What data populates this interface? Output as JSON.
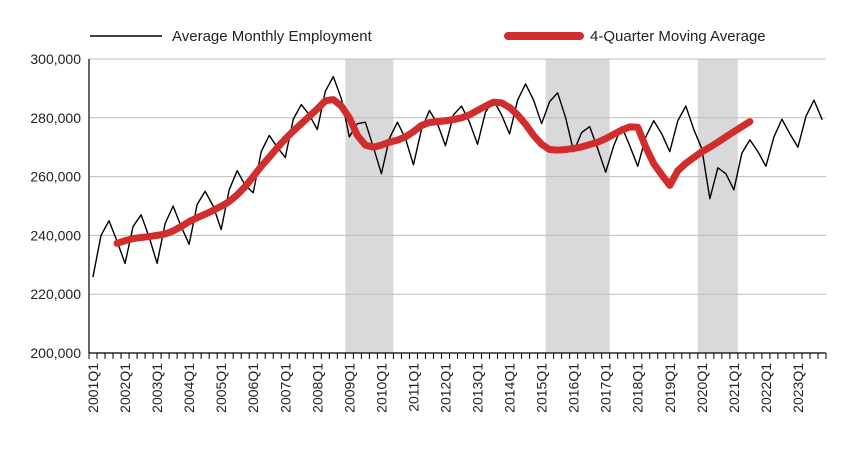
{
  "chart_data": {
    "type": "line",
    "title": "",
    "xlabel": "",
    "ylabel": "",
    "ylim": [
      200000,
      300000
    ],
    "yticks": [
      200000,
      220000,
      240000,
      260000,
      280000,
      300000
    ],
    "ytick_labels": [
      "200,000",
      "220,000",
      "240,000",
      "260,000",
      "280,000",
      "300,000"
    ],
    "grid": "horizontal",
    "legend_placement": "top",
    "xtick_labels": [
      "2001Q1",
      "2002Q1",
      "2003Q1",
      "2004Q1",
      "2005Q1",
      "2006Q1",
      "2007Q1",
      "2008Q1",
      "2009Q1",
      "2010Q1",
      "2011Q1",
      "2012Q1",
      "2013Q1",
      "2014Q1",
      "2015Q1",
      "2016Q1",
      "2017Q1",
      "2018Q1",
      "2019Q1",
      "2020Q1",
      "2021Q1",
      "2022Q1",
      "2023Q1"
    ],
    "recessions": [
      {
        "start": "2009Q1",
        "end": "2010Q2"
      },
      {
        "start": "2015Q2",
        "end": "2017Q1"
      },
      {
        "start": "2020Q1",
        "end": "2021Q1"
      }
    ],
    "series": [
      {
        "name": "Average Monthly Employment",
        "color": "#000000",
        "style": "thin",
        "start_quarter": "2001Q1",
        "values": [
          226000,
          240000,
          245000,
          238000,
          230500,
          243000,
          247000,
          239500,
          230500,
          244000,
          250000,
          243000,
          237000,
          250500,
          255000,
          250000,
          242000,
          255500,
          262000,
          257000,
          254500,
          268500,
          274000,
          270000,
          266500,
          279500,
          284500,
          281000,
          276000,
          289000,
          294000,
          286500,
          273500,
          278000,
          278500,
          270000,
          261000,
          273000,
          278500,
          273000,
          264000,
          276000,
          282500,
          278000,
          270500,
          281000,
          284000,
          278500,
          271000,
          282000,
          286000,
          281000,
          274500,
          286000,
          291500,
          286000,
          278000,
          285500,
          288500,
          280000,
          268500,
          275000,
          277000,
          269500,
          261500,
          270500,
          277000,
          270500,
          263500,
          273500,
          279000,
          274500,
          268500,
          279000,
          284000,
          276000,
          269500,
          252500,
          263000,
          261000,
          255500,
          268000,
          272500,
          268500,
          263500,
          273500,
          279500,
          274500,
          270000,
          280500,
          286000,
          279500
        ]
      },
      {
        "name": "4-Quarter Moving Average",
        "color": "#d12d2d",
        "style": "thick",
        "start_quarter": "2001Q4",
        "values": [
          237300,
          238200,
          238900,
          239300,
          239600,
          240000,
          240500,
          241500,
          243000,
          244700,
          246000,
          247200,
          248500,
          249900,
          251500,
          253800,
          256600,
          260000,
          263500,
          266600,
          269800,
          272800,
          275500,
          278000,
          280500,
          283000,
          285800,
          286200,
          284000,
          280000,
          274000,
          270700,
          270000,
          270700,
          271700,
          272400,
          273500,
          275300,
          277400,
          278400,
          278700,
          279000,
          279400,
          280000,
          281000,
          282500,
          284000,
          285300,
          285100,
          283500,
          281000,
          277800,
          274000,
          271000,
          269200,
          269000,
          269200,
          269600,
          270100,
          270900,
          271700,
          272900,
          274400,
          275800,
          276900,
          276800,
          270000,
          264400,
          260600,
          257000,
          262000,
          264500,
          266500,
          268400,
          270000,
          271700,
          273500,
          275300,
          277000,
          278700
        ]
      }
    ]
  }
}
